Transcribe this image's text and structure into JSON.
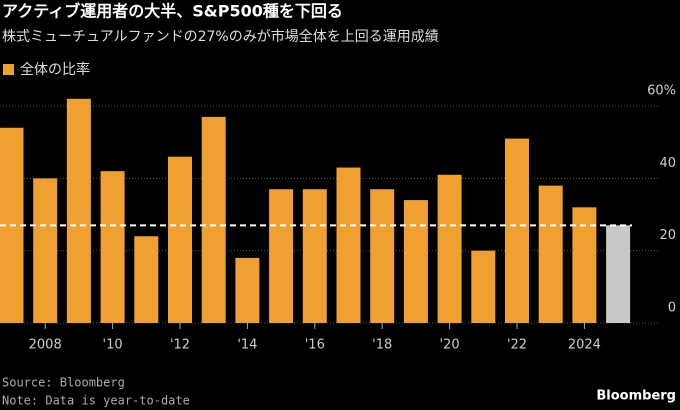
{
  "chart_data": {
    "type": "bar",
    "title": "アクティブ運用者の大半、S&P500種を下回る",
    "subtitle": "株式ミューチュアルファンドの27%のみが市場全体を上回る運用成績",
    "series": [
      {
        "name": "全体の比率",
        "color": "#f0a030",
        "values": [
          54,
          40,
          62,
          42,
          24,
          46,
          57,
          18,
          37,
          37,
          43,
          37,
          34,
          41,
          20,
          51,
          38,
          32,
          27
        ],
        "colors": [
          "#f0a030",
          "#f0a030",
          "#f0a030",
          "#f0a030",
          "#f0a030",
          "#f0a030",
          "#f0a030",
          "#f0a030",
          "#f0a030",
          "#f0a030",
          "#f0a030",
          "#f0a030",
          "#f0a030",
          "#f0a030",
          "#f0a030",
          "#f0a030",
          "#f0a030",
          "#f0a030",
          "#c8c8c8"
        ]
      }
    ],
    "categories": [
      null,
      "2008",
      null,
      "'10",
      null,
      "'12",
      null,
      "'14",
      null,
      "'16",
      null,
      "'18",
      null,
      "'20",
      null,
      "'22",
      null,
      "2024",
      null
    ],
    "ylim": [
      0,
      65
    ],
    "yticks": [
      {
        "value": 60,
        "label": "60%"
      },
      40,
      20,
      0
    ],
    "grid": true,
    "reference_line": 27,
    "source": "Source: Bloomberg",
    "note": "Note: Data is year-to-date",
    "brand": "Bloomberg"
  }
}
